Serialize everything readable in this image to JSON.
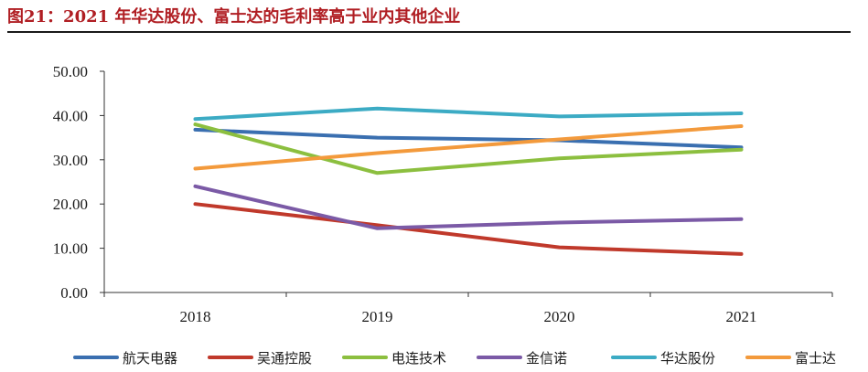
{
  "title": "图21：2021 年华达股份、富士达的毛利率高于业内其他企业",
  "chart_data": {
    "type": "line",
    "x": [
      "2018",
      "2019",
      "2020",
      "2021"
    ],
    "ylim": [
      0,
      50
    ],
    "y_ticks": [
      "0.00",
      "10.00",
      "20.00",
      "30.00",
      "40.00",
      "50.00"
    ],
    "grid": false,
    "legend_position": "bottom",
    "series": [
      {
        "name": "航天电器",
        "color": "#3a6fb0",
        "values": [
          36.8,
          35.0,
          34.4,
          32.8
        ]
      },
      {
        "name": "吴通控股",
        "color": "#c0392b",
        "values": [
          20.0,
          15.2,
          10.2,
          8.7
        ]
      },
      {
        "name": "电连技术",
        "color": "#8cbf3f",
        "values": [
          38.0,
          27.0,
          30.3,
          32.3
        ]
      },
      {
        "name": "金信诺",
        "color": "#7b5aa6",
        "values": [
          24.0,
          14.5,
          15.8,
          16.6
        ]
      },
      {
        "name": "华达股份",
        "color": "#3cabc4",
        "values": [
          39.2,
          41.6,
          39.8,
          40.5
        ]
      },
      {
        "name": "富士达",
        "color": "#f39a3c",
        "values": [
          28.0,
          31.5,
          34.6,
          37.6
        ]
      }
    ]
  }
}
